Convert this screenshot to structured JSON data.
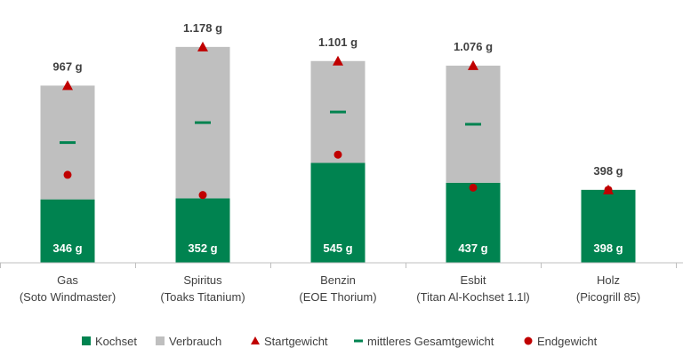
{
  "chart_data": {
    "type": "bar",
    "stacked": true,
    "categories": [
      [
        "Gas",
        "(Soto Windmaster)"
      ],
      [
        "Spiritus",
        "(Toaks Titanium)"
      ],
      [
        "Benzin",
        "(EOE Thorium)"
      ],
      [
        "Esbit",
        "(Titan Al-Kochset 1.1l)"
      ],
      [
        "Holz",
        "(Picogrill 85)"
      ]
    ],
    "series": [
      {
        "name": "Kochset",
        "type": "bar",
        "color": "#008350",
        "values": [
          346,
          352,
          545,
          437,
          398
        ],
        "labels": [
          "346 g",
          "352 g",
          "545 g",
          "437 g",
          "398 g"
        ]
      },
      {
        "name": "Verbrauch",
        "type": "bar",
        "color": "#bfbfbf",
        "values": [
          621,
          826,
          556,
          639,
          0
        ]
      },
      {
        "name": "Startgewicht",
        "type": "marker",
        "marker": "triangle",
        "color": "#c00000",
        "values": [
          967,
          1178,
          1101,
          1076,
          398
        ]
      },
      {
        "name": "mittleres Gesamtgewicht",
        "type": "marker",
        "marker": "dash",
        "color": "#008350",
        "values": [
          656,
          765,
          823,
          756,
          null
        ]
      },
      {
        "name": "Endgewicht",
        "type": "marker",
        "marker": "circle",
        "color": "#c00000",
        "values": [
          480,
          370,
          590,
          410,
          398
        ]
      }
    ],
    "total_labels": [
      "967 g",
      "1.178 g",
      "1.101 g",
      "1.076 g",
      "398 g"
    ],
    "ylim": [
      0,
      1250
    ],
    "grid": false,
    "legend_position": "bottom"
  }
}
